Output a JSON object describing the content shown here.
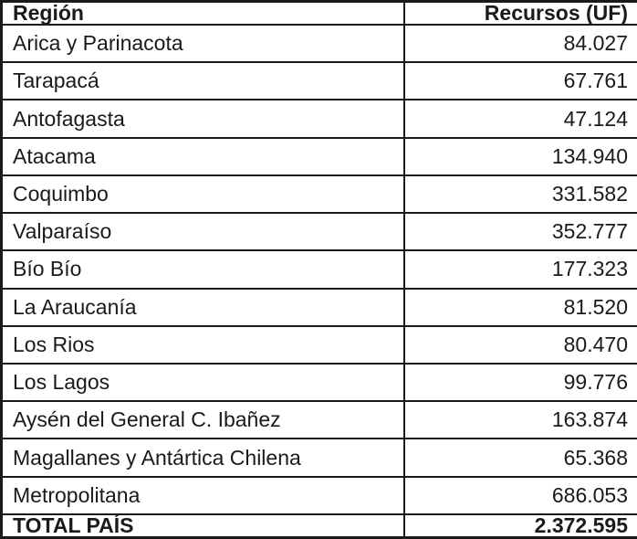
{
  "colors": {
    "border": "#1a1a1a",
    "text": "#1a1a1a",
    "background": "#ffffff"
  },
  "table": {
    "columns": [
      "Región",
      "Recursos (UF)"
    ],
    "rows": [
      {
        "region": "Arica y Parinacota",
        "value": "84.027"
      },
      {
        "region": "Tarapacá",
        "value": "67.761"
      },
      {
        "region": "Antofagasta",
        "value": "47.124"
      },
      {
        "region": "Atacama",
        "value": "134.940"
      },
      {
        "region": "Coquimbo",
        "value": "331.582"
      },
      {
        "region": "Valparaíso",
        "value": "352.777"
      },
      {
        "region": "Bío Bío",
        "value": "177.323"
      },
      {
        "region": "La Araucanía",
        "value": "81.520"
      },
      {
        "region": "Los Rios",
        "value": "80.470"
      },
      {
        "region": "Los Lagos",
        "value": "99.776"
      },
      {
        "region": "Aysén del General C. Ibañez",
        "value": "163.874"
      },
      {
        "region": "Magallanes y Antártica Chilena",
        "value": "65.368"
      },
      {
        "region": "Metropolitana",
        "value": "686.053"
      }
    ],
    "total": {
      "region": "TOTAL PAÍS",
      "value": "2.372.595"
    }
  }
}
